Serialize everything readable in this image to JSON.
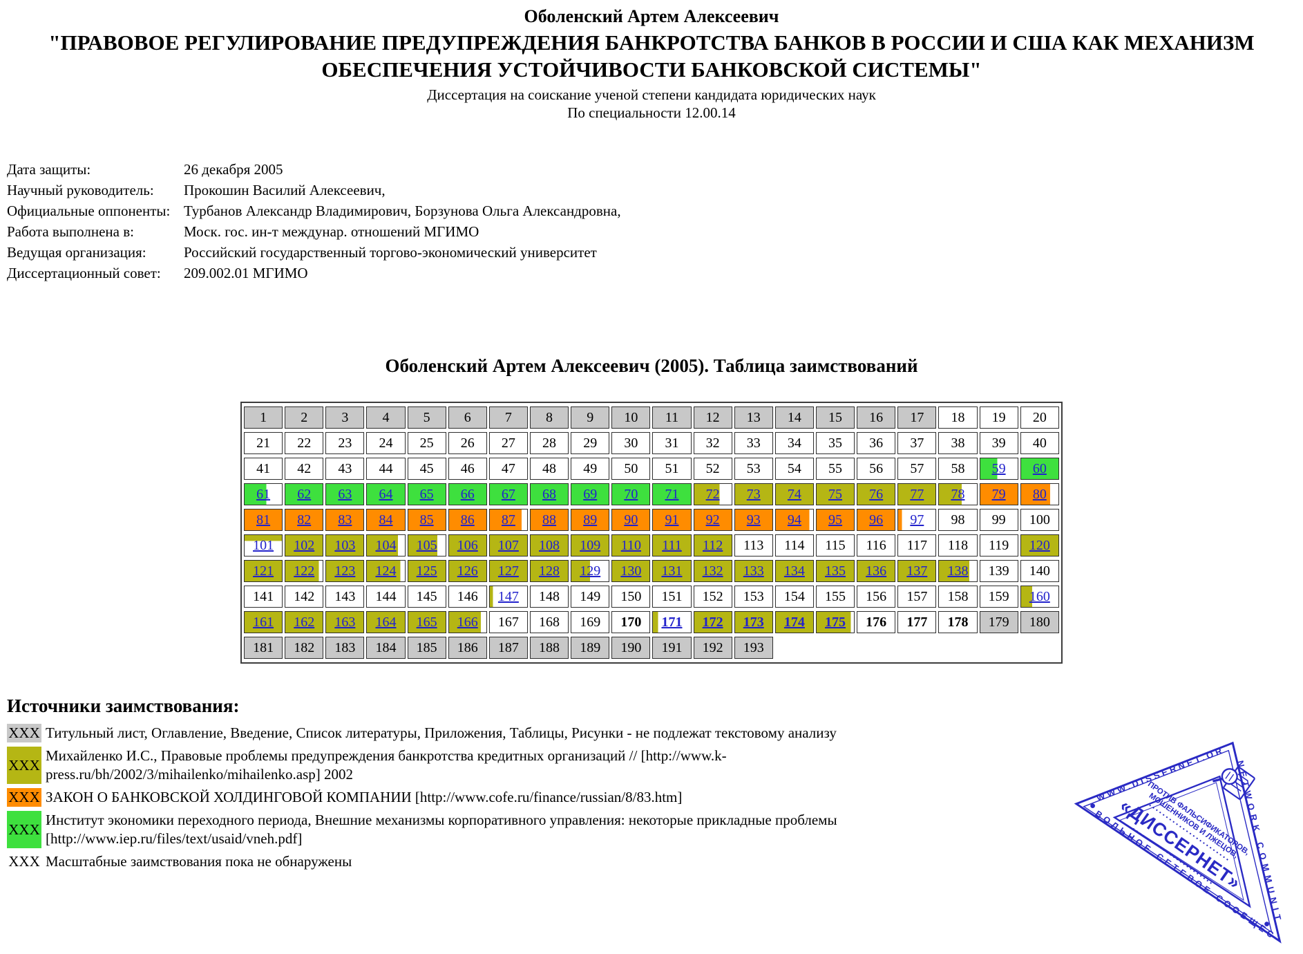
{
  "header": {
    "author": "Оболенский Артем Алексеевич",
    "title": "\"ПРАВОВОЕ РЕГУЛИРОВАНИЕ ПРЕДУПРЕЖДЕНИЯ БАНКРОТСТВА БАНКОВ В РОССИИ И США КАК МЕХАНИЗМ ОБЕСПЕЧЕНИЯ УСТОЙЧИВОСТИ БАНКОВСКОЙ СИСТЕМЫ\"",
    "subtitle": "Диссертация на соискание ученой степени кандидата юридических наук",
    "specialty": "По специальности 12.00.14"
  },
  "meta": [
    {
      "label": "Дата защиты:",
      "value": "26 декабря 2005"
    },
    {
      "label": "Научный руководитель:",
      "value": "Прокошин Василий Алексеевич,"
    },
    {
      "label": "Официальные оппоненты:",
      "value": "Турбанов Александр Владимирович, Борзунова Ольга Александровна,"
    },
    {
      "label": "Работа выполнена в:",
      "value": "Моск. гос. ин-т междунар. отношений МГИМО"
    },
    {
      "label": "Ведущая организация:",
      "value": "Российский государственный торгово-экономический университет"
    },
    {
      "label": "Диссертационный совет:",
      "value": "209.002.01 МГИМО"
    }
  ],
  "table_heading": "Оболенский Артем Алексеевич (2005). Таблица заимствований",
  "palette": {
    "white": "#ffffff",
    "gray": "#c8c8c8",
    "olive": "#b5b614",
    "orange": "#ff8c00",
    "green": "#3ee03e",
    "link": "#2222cc",
    "stamp": "#2a2ac4"
  },
  "grid": {
    "columns": 20,
    "rows": 10,
    "total": 193,
    "ranges": [
      {
        "from": 1,
        "to": 17,
        "bg": "gray"
      },
      {
        "from": 18,
        "to": 58,
        "bg": "white"
      },
      {
        "from": 59,
        "to": 59,
        "bg": "green",
        "pct": 45,
        "link": true
      },
      {
        "from": 60,
        "to": 60,
        "bg": "green",
        "link": true
      },
      {
        "from": 61,
        "to": 61,
        "bg": "green",
        "pct": 58,
        "link": true
      },
      {
        "from": 62,
        "to": 71,
        "bg": "green",
        "link": true
      },
      {
        "from": 72,
        "to": 72,
        "bg": "olive",
        "pct": 68,
        "link": true
      },
      {
        "from": 73,
        "to": 77,
        "bg": "olive",
        "link": true
      },
      {
        "from": 78,
        "to": 78,
        "bg": "olive",
        "pct": 60,
        "link": true
      },
      {
        "from": 79,
        "to": 79,
        "bg": "orange",
        "link": true
      },
      {
        "from": 80,
        "to": 80,
        "bg": "orange",
        "pct": 78,
        "link": true
      },
      {
        "from": 81,
        "to": 86,
        "bg": "orange",
        "link": true
      },
      {
        "from": 87,
        "to": 87,
        "bg": "orange",
        "pct": 85,
        "link": true
      },
      {
        "from": 88,
        "to": 93,
        "bg": "orange",
        "link": true
      },
      {
        "from": 94,
        "to": 94,
        "bg": "orange",
        "pct": 90,
        "link": true
      },
      {
        "from": 95,
        "to": 96,
        "bg": "orange",
        "link": true
      },
      {
        "from": 97,
        "to": 97,
        "bg": "orange",
        "pct": 10,
        "link": true
      },
      {
        "from": 98,
        "to": 100,
        "bg": "white"
      },
      {
        "from": 101,
        "to": 101,
        "bg": "olive",
        "pct": 28,
        "dir": "down",
        "link": true
      },
      {
        "from": 102,
        "to": 103,
        "bg": "olive",
        "link": true
      },
      {
        "from": 104,
        "to": 104,
        "bg": "olive",
        "pct": 82,
        "link": true
      },
      {
        "from": 105,
        "to": 105,
        "bg": "olive",
        "pct": 78,
        "link": true
      },
      {
        "from": 106,
        "to": 112,
        "bg": "olive",
        "link": true
      },
      {
        "from": 113,
        "to": 119,
        "bg": "white"
      },
      {
        "from": 120,
        "to": 121,
        "bg": "olive",
        "link": true
      },
      {
        "from": 122,
        "to": 122,
        "bg": "olive",
        "pct": 90,
        "link": true
      },
      {
        "from": 123,
        "to": 123,
        "bg": "olive",
        "link": true
      },
      {
        "from": 124,
        "to": 124,
        "bg": "olive",
        "pct": 88,
        "link": true
      },
      {
        "from": 125,
        "to": 128,
        "bg": "olive",
        "link": true
      },
      {
        "from": 129,
        "to": 129,
        "bg": "olive",
        "pct": 50,
        "link": true
      },
      {
        "from": 130,
        "to": 137,
        "bg": "olive",
        "link": true
      },
      {
        "from": 138,
        "to": 138,
        "bg": "olive",
        "pct": 80,
        "link": true
      },
      {
        "from": 139,
        "to": 146,
        "bg": "white"
      },
      {
        "from": 147,
        "to": 147,
        "bg": "olive",
        "pct": 8,
        "link": true
      },
      {
        "from": 148,
        "to": 159,
        "bg": "white"
      },
      {
        "from": 160,
        "to": 160,
        "bg": "olive",
        "pct": 30,
        "link": true
      },
      {
        "from": 161,
        "to": 165,
        "bg": "olive",
        "link": true
      },
      {
        "from": 166,
        "to": 166,
        "bg": "olive",
        "pct": 85,
        "link": true
      },
      {
        "from": 167,
        "to": 169,
        "bg": "white"
      },
      {
        "from": 170,
        "to": 170,
        "bg": "white",
        "bold": true
      },
      {
        "from": 171,
        "to": 171,
        "bg": "olive",
        "pct": 14,
        "link": true,
        "bold": true
      },
      {
        "from": 172,
        "to": 174,
        "bg": "olive",
        "link": true,
        "bold": true
      },
      {
        "from": 175,
        "to": 175,
        "bg": "olive",
        "pct": 92,
        "link": true,
        "bold": true
      },
      {
        "from": 176,
        "to": 178,
        "bg": "white",
        "bold": true
      },
      {
        "from": 179,
        "to": 193,
        "bg": "gray"
      }
    ]
  },
  "legend": {
    "heading": "Источники заимствования:",
    "marker": "XXX",
    "items": [
      {
        "color": "gray",
        "text": "Титульный лист, Оглавление, Введение, Список литературы, Приложения, Таблицы, Рисунки - не подлежат текстовому анализу"
      },
      {
        "color": "olive",
        "text": "Михайленко И.С., Правовые проблемы предупреждения банкротства кредитных организаций // [http://www.k-press.ru/bh/2002/3/mihailenko/mihailenko.asp] 2002"
      },
      {
        "color": "orange",
        "text": "ЗАКОН О БАНКОВСКОЙ ХОЛДИНГОВОЙ КОМПАНИИ [http://www.cofe.ru/finance/russian/8/83.htm]"
      },
      {
        "color": "green",
        "text": "Институт экономики переходного периода, Внешние механизмы корпоративного управления: некоторые прикладные проблемы [http://www.iep.ru/files/text/usaid/vneh.pdf]"
      },
      {
        "color": "white",
        "text": "Масштабные заимствования пока не обнаружены"
      }
    ]
  },
  "logo": {
    "edge_top": "WWW.DISSERNET.ORG",
    "edge_right": "NETWORK COMMUNITY",
    "edge_bottom": "ВОЛЬНОЕ СЕТЕВОЕ СООБЩЕСТВО",
    "slogan_line1": "ПРОТИВ ФАЛЬСИФИКАТОРОВ,",
    "slogan_line2": "МОШЕННИКОВ И ЛЖЕЦОВ,",
    "center": "«ДИССЕРНЕТ»"
  }
}
